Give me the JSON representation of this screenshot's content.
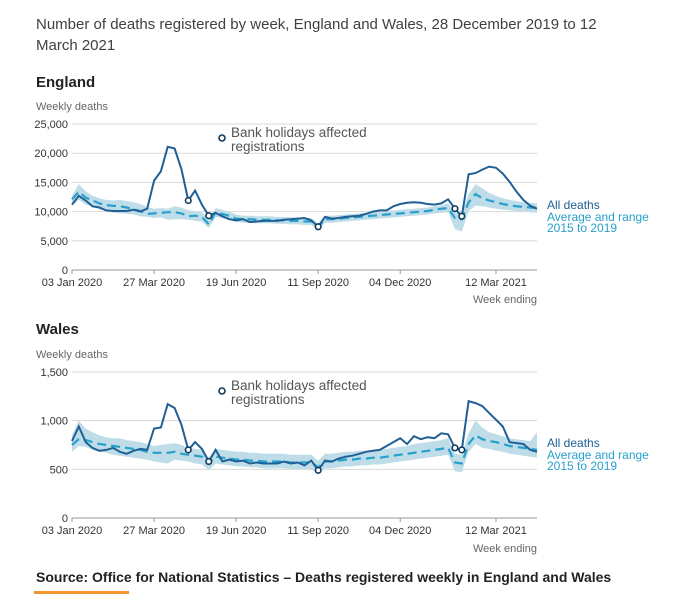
{
  "colors": {
    "all_deaths": "#206095",
    "average": "#27a0cc",
    "range": "#bfdde8",
    "grid": "#d9d9d9",
    "accent": "#f39431"
  },
  "chart_data": [
    {
      "type": "line",
      "title": "Number of deaths registered by week, England and Wales, 28 December 2019 to 12 March 2021",
      "panel": "England",
      "ylabel": "Weekly deaths",
      "xlabel": "Week ending",
      "ylim": [
        0,
        25000
      ],
      "yticks": [
        "0",
        "5,000",
        "10,000",
        "15,000",
        "20,000",
        "25,000"
      ],
      "ytick_values": [
        0,
        5000,
        10000,
        15000,
        20000,
        25000
      ],
      "xtick_labels": [
        "03 Jan 2020",
        "27 Mar 2020",
        "19 Jun 2020",
        "11 Sep 2020",
        "04 Dec 2020",
        "12 Mar 2021"
      ],
      "xtick_weeks": [
        0,
        12,
        24,
        36,
        48,
        62
      ],
      "annotation": [
        "Bank holidays affected",
        "registrations"
      ],
      "legend": [
        "All deaths",
        "Average and range",
        "2015 to 2019"
      ],
      "series": [
        {
          "name": "All deaths",
          "values": [
            11200,
            12700,
            11900,
            10900,
            10700,
            10200,
            10100,
            10100,
            10100,
            10300,
            10000,
            10500,
            15300,
            16900,
            21100,
            20800,
            17300,
            11900,
            13600,
            11200,
            9300,
            9800,
            9200,
            8700,
            8500,
            8700,
            8200,
            8300,
            8400,
            8400,
            8400,
            8600,
            8700,
            8800,
            8900,
            8500,
            7400,
            9100,
            8800,
            8900,
            9100,
            9200,
            9300,
            9600,
            10000,
            10200,
            10200,
            10900,
            11300,
            11500,
            11600,
            11500,
            11300,
            11200,
            11400,
            12100,
            10500,
            9200,
            16400,
            16600,
            17200,
            17700,
            17500,
            16500,
            15100,
            13400,
            12000,
            11000,
            10500
          ]
        },
        {
          "name": "Average",
          "values": [
            12100,
            13400,
            12400,
            11900,
            11400,
            11100,
            11000,
            10900,
            10700,
            10400,
            10100,
            9600,
            9700,
            9800,
            9900,
            9900,
            9700,
            9200,
            9300,
            9100,
            7800,
            9900,
            9600,
            9300,
            8800,
            8700,
            8700,
            8600,
            8600,
            8600,
            8500,
            8500,
            8400,
            8400,
            8300,
            8300,
            7400,
            8700,
            8700,
            8800,
            8900,
            9000,
            9100,
            9200,
            9300,
            9400,
            9500,
            9600,
            9700,
            9800,
            9900,
            10000,
            10100,
            10300,
            10500,
            10600,
            8900,
            8700,
            11600,
            13000,
            12300,
            11900,
            11600,
            11300,
            11100,
            10900,
            10800,
            10700,
            10600
          ]
        },
        {
          "name": "Range low",
          "values": [
            11000,
            12000,
            11200,
            10900,
            10400,
            10100,
            9800,
            9700,
            9600,
            9500,
            9200,
            9100,
            8900,
            9000,
            8600,
            8700,
            8700,
            8600,
            8400,
            8300,
            7200,
            9100,
            8900,
            8600,
            8200,
            8100,
            8100,
            8000,
            8000,
            8000,
            7900,
            7900,
            7800,
            7800,
            7700,
            7700,
            6800,
            8100,
            8100,
            8200,
            8300,
            8400,
            8500,
            8600,
            8700,
            8800,
            8900,
            9000,
            9100,
            9200,
            9300,
            9400,
            9500,
            9700,
            9800,
            9900,
            7000,
            6600,
            10100,
            11000,
            10900,
            10700,
            10500,
            10300,
            10200,
            10100,
            10000,
            9900,
            9800
          ]
        },
        {
          "name": "Range high",
          "values": [
            12700,
            14700,
            13500,
            12700,
            12300,
            12000,
            11900,
            12000,
            11800,
            11600,
            11300,
            10800,
            10500,
            10600,
            10500,
            10900,
            10700,
            10200,
            10100,
            9900,
            8600,
            10600,
            10300,
            10000,
            9500,
            9300,
            9300,
            9200,
            9200,
            9200,
            9100,
            9100,
            9000,
            9000,
            8900,
            8900,
            8000,
            9300,
            9300,
            9400,
            9500,
            9600,
            9700,
            9800,
            9900,
            10000,
            10100,
            10200,
            10300,
            10400,
            10500,
            10600,
            10700,
            10900,
            11100,
            11400,
            9800,
            9600,
            13000,
            14700,
            14000,
            13200,
            12700,
            12300,
            12000,
            11800,
            11600,
            11500,
            11400
          ]
        },
        {
          "name": "Bank holiday weeks",
          "values": [
            17,
            20,
            36,
            56,
            57
          ]
        }
      ]
    },
    {
      "type": "line",
      "panel": "Wales",
      "ylabel": "Weekly deaths",
      "xlabel": "Week ending",
      "ylim": [
        0,
        1500
      ],
      "yticks": [
        "0",
        "500",
        "1,000",
        "1,500"
      ],
      "ytick_values": [
        0,
        500,
        1000,
        1500
      ],
      "xtick_labels": [
        "03 Jan 2020",
        "27 Mar 2020",
        "19 Jun 2020",
        "11 Sep 2020",
        "04 Dec 2020",
        "12 Mar 2021"
      ],
      "xtick_weeks": [
        0,
        12,
        24,
        36,
        48,
        62
      ],
      "annotation": [
        "Bank holidays affected",
        "registrations"
      ],
      "legend": [
        "All deaths",
        "Average and range",
        "2015 to 2019"
      ],
      "series": [
        {
          "name": "All deaths",
          "values": [
            790,
            940,
            780,
            720,
            690,
            700,
            720,
            680,
            660,
            690,
            710,
            700,
            920,
            930,
            1170,
            1130,
            960,
            700,
            780,
            710,
            580,
            700,
            580,
            600,
            580,
            590,
            560,
            570,
            560,
            560,
            560,
            580,
            560,
            570,
            540,
            590,
            490,
            590,
            580,
            610,
            630,
            640,
            660,
            680,
            690,
            700,
            740,
            780,
            820,
            760,
            840,
            810,
            830,
            820,
            870,
            860,
            720,
            700,
            1200,
            1180,
            1150,
            1080,
            1010,
            940,
            780,
            770,
            760,
            700,
            680
          ]
        },
        {
          "name": "Average",
          "values": [
            750,
            810,
            800,
            780,
            760,
            750,
            740,
            730,
            720,
            710,
            700,
            680,
            670,
            670,
            670,
            680,
            660,
            650,
            640,
            630,
            560,
            630,
            620,
            610,
            600,
            600,
            590,
            590,
            580,
            580,
            580,
            580,
            570,
            570,
            570,
            570,
            520,
            580,
            580,
            590,
            600,
            600,
            610,
            610,
            620,
            620,
            630,
            640,
            650,
            660,
            670,
            680,
            690,
            700,
            710,
            720,
            570,
            560,
            760,
            850,
            810,
            790,
            780,
            760,
            740,
            730,
            720,
            710,
            700
          ]
        },
        {
          "name": "Range low",
          "values": [
            680,
            740,
            730,
            700,
            680,
            670,
            650,
            640,
            630,
            620,
            610,
            600,
            580,
            570,
            560,
            600,
            590,
            580,
            560,
            550,
            490,
            560,
            550,
            540,
            530,
            530,
            520,
            520,
            510,
            510,
            510,
            510,
            500,
            500,
            500,
            500,
            460,
            510,
            510,
            520,
            530,
            530,
            540,
            540,
            550,
            550,
            560,
            570,
            580,
            590,
            600,
            610,
            620,
            630,
            640,
            650,
            480,
            470,
            680,
            760,
            720,
            710,
            690,
            680,
            660,
            650,
            640,
            630,
            620
          ]
        },
        {
          "name": "Range high",
          "values": [
            850,
            1000,
            920,
            880,
            850,
            830,
            820,
            820,
            800,
            790,
            780,
            760,
            740,
            750,
            760,
            770,
            750,
            720,
            710,
            700,
            620,
            710,
            700,
            690,
            680,
            680,
            670,
            670,
            660,
            660,
            660,
            660,
            650,
            650,
            650,
            650,
            590,
            660,
            660,
            670,
            680,
            680,
            690,
            690,
            700,
            700,
            710,
            720,
            730,
            740,
            760,
            770,
            780,
            790,
            800,
            820,
            660,
            650,
            870,
            1000,
            930,
            880,
            860,
            840,
            820,
            810,
            800,
            790,
            880
          ]
        },
        {
          "name": "Bank holiday weeks",
          "values": [
            17,
            20,
            36,
            56,
            57
          ]
        }
      ]
    }
  ],
  "source": "Source: Office for National Statistics – Deaths registered weekly in England and Wales"
}
